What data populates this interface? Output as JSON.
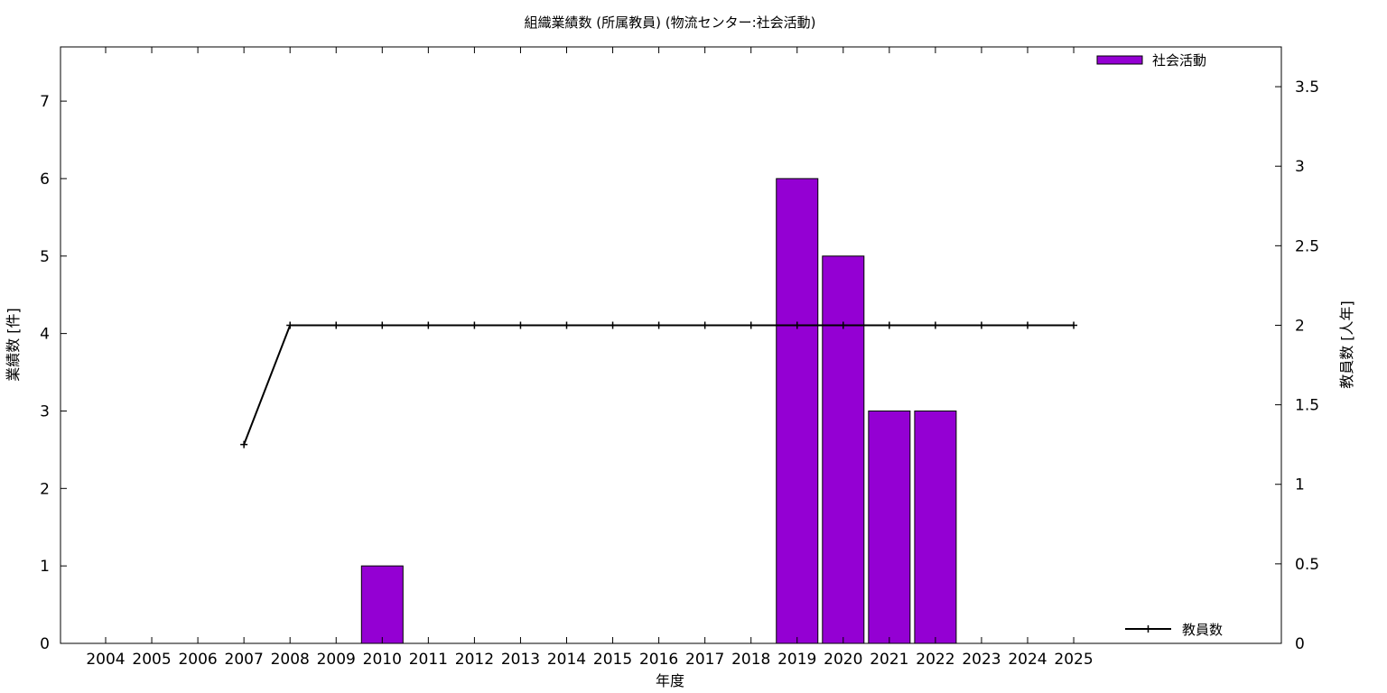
{
  "chart_data": {
    "type": "bar",
    "title": "組織業績数 (所属教員) (物流センター:社会活動)",
    "xlabel": "年度",
    "ylabel": "業績数 [件]",
    "y2label": "教員数 [人年]",
    "categories": [
      "2004",
      "2005",
      "2006",
      "2007",
      "2008",
      "2009",
      "2010",
      "2011",
      "2012",
      "2013",
      "2014",
      "2015",
      "2016",
      "2017",
      "2018",
      "2019",
      "2020",
      "2021",
      "2022",
      "2023",
      "2024",
      "2025"
    ],
    "series": [
      {
        "name": "社会活動",
        "type": "bar",
        "axis": "left",
        "color": "#9400d3",
        "values": [
          0,
          0,
          0,
          0,
          0,
          0,
          1,
          0,
          0,
          0,
          0,
          0,
          0,
          0,
          0,
          6,
          5,
          3,
          3,
          0,
          0,
          0
        ]
      },
      {
        "name": "教員数",
        "type": "line",
        "axis": "right",
        "color": "#000000",
        "values": [
          null,
          null,
          null,
          1.25,
          2,
          2,
          2,
          2,
          2,
          2,
          2,
          2,
          2,
          2,
          2,
          2,
          2,
          2,
          2,
          2,
          2,
          2
        ]
      }
    ],
    "ylim": [
      0,
      7.7
    ],
    "y2lim": [
      0,
      3.75
    ],
    "yticks": [
      "0",
      "1",
      "2",
      "3",
      "4",
      "5",
      "6",
      "7"
    ],
    "y2ticks": [
      "0",
      "0.5",
      "1",
      "1.5",
      "2",
      "2.5",
      "3",
      "3.5"
    ],
    "legend": [
      "top-right",
      "bottom-right"
    ],
    "grid": false
  }
}
